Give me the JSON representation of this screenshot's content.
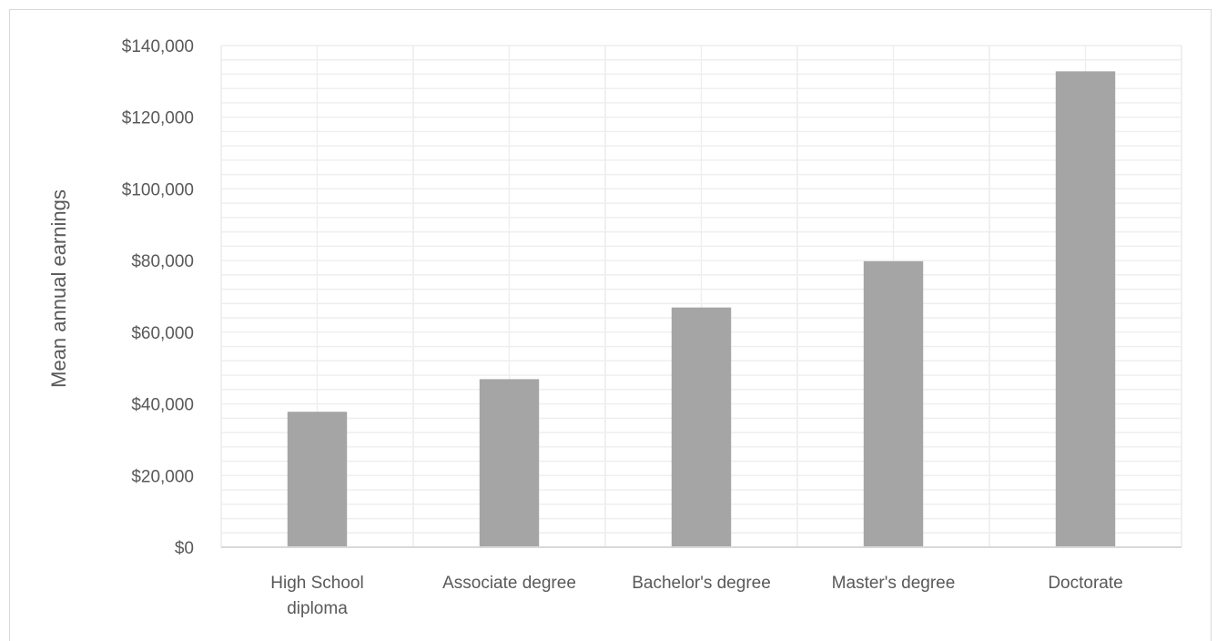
{
  "chart_data": {
    "type": "bar",
    "title": "",
    "xlabel": "",
    "ylabel": "Mean annual earnings",
    "categories": [
      [
        "High School",
        "diploma"
      ],
      [
        "Associate degree"
      ],
      [
        "Bachelor's degree"
      ],
      [
        "Master's degree"
      ],
      [
        "Doctorate"
      ]
    ],
    "values": [
      37800,
      46900,
      66900,
      79800,
      132800
    ],
    "ylim": [
      0,
      140000
    ],
    "major_tick_step": 20000,
    "minor_tick_step": 4000,
    "y_tick_labels": [
      "$0",
      "$20,000",
      "$40,000",
      "$60,000",
      "$80,000",
      "$100,000",
      "$120,000",
      "$140,000"
    ],
    "grid": true,
    "legend": "none",
    "bar_color": "#a5a5a5",
    "grid_color": "#eeeeee",
    "axis_color": "#d9d9d9"
  }
}
